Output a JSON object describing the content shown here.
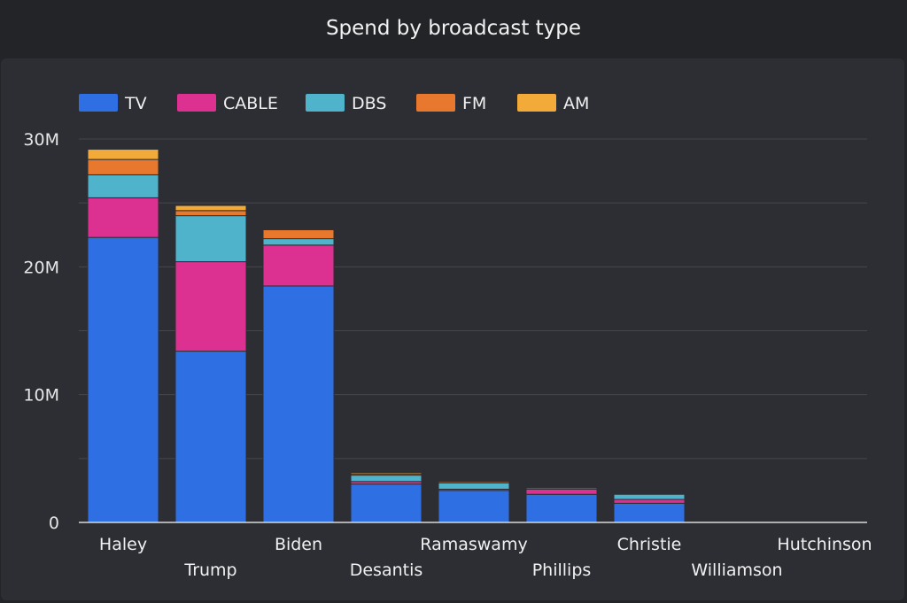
{
  "header": {
    "title": "Spend by broadcast type"
  },
  "chart_data": {
    "type": "bar",
    "stacked": true,
    "title": "Spend by broadcast type",
    "xlabel": "",
    "ylabel": "",
    "ylim": [
      0,
      30000000
    ],
    "yticks": [
      0,
      10000000,
      20000000,
      30000000
    ],
    "ytick_labels": [
      "0",
      "10M",
      "20M",
      "30M"
    ],
    "grid": true,
    "legend_position": "top-left",
    "categories": [
      "Haley",
      "Trump",
      "Biden",
      "Desantis",
      "Ramaswamy",
      "Phillips",
      "Christie",
      "Williamson",
      "Hutchinson"
    ],
    "series": [
      {
        "name": "TV",
        "color": "#2f6fe4",
        "values": [
          22300000,
          13400000,
          18500000,
          3000000,
          2500000,
          2200000,
          1500000,
          0,
          0
        ]
      },
      {
        "name": "CABLE",
        "color": "#dc3191",
        "values": [
          3100000,
          7000000,
          3200000,
          200000,
          100000,
          400000,
          300000,
          0,
          0
        ]
      },
      {
        "name": "DBS",
        "color": "#4fb3cc",
        "values": [
          1800000,
          3600000,
          500000,
          500000,
          500000,
          0,
          400000,
          0,
          0
        ]
      },
      {
        "name": "FM",
        "color": "#e8782e",
        "values": [
          1200000,
          400000,
          700000,
          100000,
          100000,
          100000,
          0,
          0,
          0
        ]
      },
      {
        "name": "AM",
        "color": "#f2aa38",
        "values": [
          800000,
          400000,
          0,
          100000,
          0,
          0,
          0,
          0,
          0
        ]
      }
    ]
  }
}
